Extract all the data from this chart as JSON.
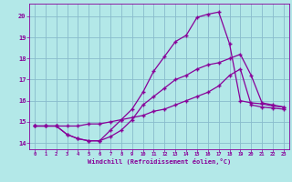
{
  "background_color": "#b3e8e8",
  "grid_color": "#88bbcc",
  "line_color": "#880099",
  "xlabel": "Windchill (Refroidissement éolien,°C)",
  "xlim": [
    -0.5,
    23.5
  ],
  "ylim": [
    13.7,
    20.6
  ],
  "yticks": [
    14,
    15,
    16,
    17,
    18,
    19,
    20
  ],
  "xticks": [
    0,
    1,
    2,
    3,
    4,
    5,
    6,
    7,
    8,
    9,
    10,
    11,
    12,
    13,
    14,
    15,
    16,
    17,
    18,
    19,
    20,
    21,
    22,
    23
  ],
  "line1_x": [
    0,
    1,
    2,
    3,
    4,
    5,
    6,
    7,
    8,
    9,
    10,
    11,
    12,
    13,
    14,
    15,
    16,
    17,
    18,
    19,
    20,
    21,
    22,
    23
  ],
  "line1_y": [
    14.8,
    14.8,
    14.8,
    14.4,
    14.2,
    14.1,
    14.1,
    14.6,
    15.1,
    15.6,
    16.4,
    17.4,
    18.1,
    18.8,
    19.1,
    19.95,
    20.1,
    20.2,
    18.7,
    16.0,
    15.9,
    15.85,
    15.75,
    15.7
  ],
  "line2_x": [
    0,
    1,
    2,
    3,
    4,
    5,
    6,
    7,
    8,
    9,
    10,
    11,
    12,
    13,
    14,
    15,
    16,
    17,
    18,
    19,
    20,
    21,
    22,
    23
  ],
  "line2_y": [
    14.8,
    14.8,
    14.8,
    14.4,
    14.2,
    14.1,
    14.1,
    14.3,
    14.6,
    15.1,
    15.8,
    16.2,
    16.6,
    17.0,
    17.2,
    17.5,
    17.7,
    17.8,
    18.0,
    18.2,
    17.2,
    15.9,
    15.8,
    15.7
  ],
  "line3_x": [
    0,
    1,
    2,
    3,
    4,
    5,
    6,
    7,
    8,
    9,
    10,
    11,
    12,
    13,
    14,
    15,
    16,
    17,
    18,
    19,
    20,
    21,
    22,
    23
  ],
  "line3_y": [
    14.8,
    14.8,
    14.8,
    14.8,
    14.8,
    14.9,
    14.9,
    15.0,
    15.1,
    15.2,
    15.3,
    15.5,
    15.6,
    15.8,
    16.0,
    16.2,
    16.4,
    16.7,
    17.2,
    17.5,
    15.8,
    15.7,
    15.65,
    15.6
  ]
}
